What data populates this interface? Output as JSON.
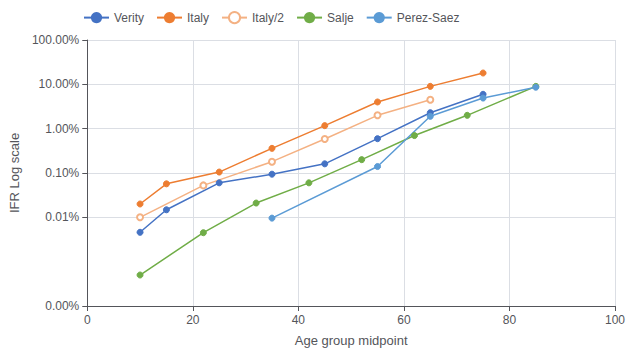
{
  "chart_data": {
    "type": "line",
    "xlabel": "Age group midpoint",
    "ylabel": "IFR Log scale",
    "log": "y",
    "grid": true,
    "legend": "upper left",
    "xlim": [
      0,
      100
    ],
    "xticks": [
      0,
      20,
      40,
      60,
      80,
      100
    ],
    "ylim": [
      1e-06,
      1.0
    ],
    "yticks": [
      {
        "value": 1e-06,
        "label": "0.00%"
      },
      {
        "value": 0.0001,
        "label": "0.01%"
      },
      {
        "value": 0.001,
        "label": "0.10%"
      },
      {
        "value": 0.01,
        "label": "1.00%"
      },
      {
        "value": 0.1,
        "label": "10.00%"
      },
      {
        "value": 1.0,
        "label": "100.00%"
      }
    ],
    "series": [
      {
        "name": "Verity",
        "color": "#4472C4",
        "marker": "circle",
        "line_style": "solid",
        "x": [
          10,
          15,
          25,
          35,
          45,
          55,
          65,
          75
        ],
        "values": [
          4.6e-05,
          0.000148,
          0.0006,
          0.00094,
          0.00161,
          0.00595,
          0.0229,
          0.0596
        ]
      },
      {
        "name": "Italy",
        "color": "#ED7D31",
        "marker": "circle",
        "line_style": "solid",
        "x": [
          10,
          15,
          25,
          35,
          45,
          55,
          65,
          75
        ],
        "values": [
          0.0002,
          0.00057,
          0.00105,
          0.0036,
          0.0117,
          0.04,
          0.09,
          0.18
        ]
      },
      {
        "name": "Italy/2",
        "color": "#F4B183",
        "marker": "open circle",
        "line_style": "solid",
        "x": [
          10,
          22,
          35,
          45,
          55,
          65
        ],
        "values": [
          0.0001,
          0.000525,
          0.0018,
          0.00585,
          0.02,
          0.045
        ]
      },
      {
        "name": "Salje",
        "color": "#70AD47",
        "marker": "circle",
        "line_style": "solid",
        "x": [
          10,
          22,
          32,
          42,
          52,
          62,
          72,
          85
        ],
        "values": [
          5e-06,
          4.5e-05,
          0.00021,
          0.0006,
          0.002,
          0.007,
          0.02,
          0.09
        ]
      },
      {
        "name": "Perez-Saez",
        "color": "#5B9BD5",
        "marker": "circle",
        "line_style": "solid",
        "x": [
          35,
          55,
          65,
          75,
          85
        ],
        "values": [
          9.6e-05,
          0.0014,
          0.019,
          0.049,
          0.086
        ]
      }
    ]
  }
}
